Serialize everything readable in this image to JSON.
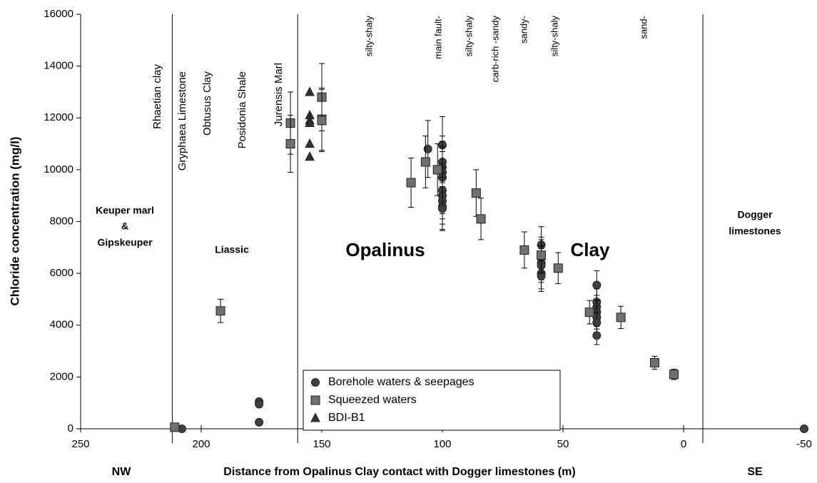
{
  "chart_data": {
    "type": "scatter",
    "xlabel": "Distance from Opalinus Clay contact with Dogger limestones (m)",
    "ylabel": "Chloride concentration (mg/l)",
    "xlim": [
      250,
      -50
    ],
    "ylim": [
      0,
      16000
    ],
    "xticks": [
      250,
      200,
      150,
      100,
      50,
      0,
      -50
    ],
    "yticks": [
      0,
      2000,
      4000,
      6000,
      8000,
      10000,
      12000,
      14000,
      16000
    ],
    "dividers": [
      212,
      160,
      -8
    ],
    "direction_labels": [
      "NW",
      "SE"
    ],
    "region_labels": [
      "Keuper marl",
      "&",
      "Gipskeuper",
      "Liassic",
      "Opalinus",
      "Clay",
      "Dogger",
      "limestones"
    ],
    "unit_labels": [
      "Rhaetian clay",
      "Gryphaea Limestone",
      "Obtusus Clay",
      "Posidonia Shale",
      "Jurensis Marl",
      "silty-shaly",
      "main fault-",
      "silty-shaly",
      "carb-rich -sandy",
      "sandy-",
      "silty-shaly",
      "sand-"
    ],
    "series": [
      {
        "name": "Borehole waters & seepages",
        "marker": "circle",
        "color": "#404040",
        "x": [
          208,
          176,
          176,
          176,
          106,
          100,
          100,
          100,
          100,
          100,
          100,
          100,
          100,
          100,
          100,
          59,
          59,
          59,
          59,
          59,
          59,
          36,
          36,
          36,
          36,
          36,
          36,
          36,
          -50
        ],
        "values": [
          0,
          1050,
          950,
          250,
          10800,
          10950,
          10300,
          10100,
          9900,
          9700,
          9200,
          9000,
          8800,
          8600,
          8500,
          7100,
          6600,
          6400,
          6300,
          6000,
          5900,
          5550,
          4900,
          4700,
          4500,
          4300,
          4100,
          3600,
          0
        ],
        "errors": [
          null,
          null,
          null,
          null,
          1100,
          1100,
          1000,
          1000,
          1000,
          1000,
          900,
          900,
          900,
          900,
          850,
          700,
          700,
          650,
          650,
          600,
          600,
          550,
          500,
          450,
          450,
          450,
          400,
          350,
          null
        ]
      },
      {
        "name": "Squeezed waters",
        "marker": "square",
        "color": "#707070",
        "x": [
          211,
          192,
          163,
          163,
          150,
          150,
          150,
          113,
          107,
          102,
          86,
          84,
          66,
          59,
          52,
          39,
          26,
          12,
          4
        ],
        "values": [
          60,
          4550,
          11800,
          11000,
          12800,
          11950,
          11900,
          9500,
          10300,
          10000,
          9100,
          8100,
          6900,
          6700,
          6200,
          4500,
          4300,
          2550,
          2100
        ],
        "errors": [
          null,
          450,
          1200,
          1100,
          1300,
          1200,
          1200,
          950,
          1000,
          1000,
          900,
          800,
          700,
          700,
          600,
          450,
          430,
          250,
          200
        ]
      },
      {
        "name": "BDI-B1",
        "marker": "triangle",
        "color": "#303030",
        "x": [
          155,
          155,
          155,
          155,
          155,
          155
        ],
        "values": [
          13000,
          12100,
          11900,
          11800,
          11000,
          10500
        ]
      }
    ]
  }
}
